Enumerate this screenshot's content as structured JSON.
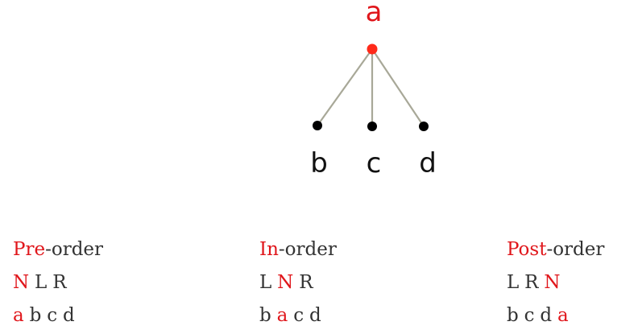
{
  "tree": {
    "root": {
      "label": "a",
      "color": "#e0161b"
    },
    "children": [
      {
        "label": "b"
      },
      {
        "label": "c"
      },
      {
        "label": "d"
      }
    ]
  },
  "traversals": [
    {
      "name_highlight": "Pre",
      "name_rest": "-order",
      "pattern": [
        {
          "text": "N",
          "highlight": true
        },
        {
          "text": "L",
          "highlight": false
        },
        {
          "text": "R",
          "highlight": false
        }
      ],
      "sequence": [
        {
          "text": "a",
          "highlight": true
        },
        {
          "text": "b",
          "highlight": false
        },
        {
          "text": "c",
          "highlight": false
        },
        {
          "text": "d",
          "highlight": false
        }
      ]
    },
    {
      "name_highlight": "In",
      "name_rest": "-order",
      "pattern": [
        {
          "text": "L",
          "highlight": false
        },
        {
          "text": "N",
          "highlight": true
        },
        {
          "text": "R",
          "highlight": false
        }
      ],
      "sequence": [
        {
          "text": "b",
          "highlight": false
        },
        {
          "text": "a",
          "highlight": true
        },
        {
          "text": "c",
          "highlight": false
        },
        {
          "text": "d",
          "highlight": false
        }
      ]
    },
    {
      "name_highlight": "Post",
      "name_rest": "-order",
      "pattern": [
        {
          "text": "L",
          "highlight": false
        },
        {
          "text": "R",
          "highlight": false
        },
        {
          "text": "N",
          "highlight": true
        }
      ],
      "sequence": [
        {
          "text": "b",
          "highlight": false
        },
        {
          "text": "c",
          "highlight": false
        },
        {
          "text": "d",
          "highlight": false
        },
        {
          "text": "a",
          "highlight": true
        }
      ]
    }
  ]
}
